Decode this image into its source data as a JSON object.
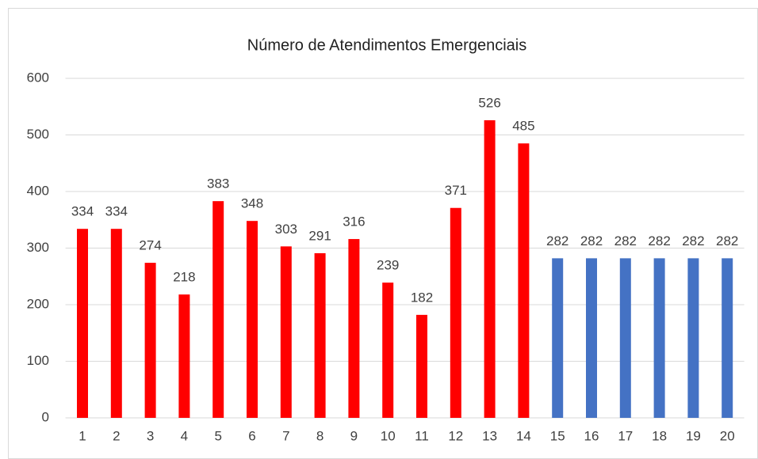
{
  "chart_data": {
    "type": "bar",
    "title": "Número de Atendimentos Emergenciais",
    "categories": [
      "1",
      "2",
      "3",
      "4",
      "5",
      "6",
      "7",
      "8",
      "9",
      "10",
      "11",
      "12",
      "13",
      "14",
      "15",
      "16",
      "17",
      "18",
      "19",
      "20"
    ],
    "values": [
      334,
      334,
      274,
      218,
      383,
      348,
      303,
      291,
      316,
      239,
      182,
      371,
      526,
      485,
      282,
      282,
      282,
      282,
      282,
      282
    ],
    "colors": [
      "#ff0000",
      "#ff0000",
      "#ff0000",
      "#ff0000",
      "#ff0000",
      "#ff0000",
      "#ff0000",
      "#ff0000",
      "#ff0000",
      "#ff0000",
      "#ff0000",
      "#ff0000",
      "#ff0000",
      "#ff0000",
      "#4472c4",
      "#4472c4",
      "#4472c4",
      "#4472c4",
      "#4472c4",
      "#4472c4"
    ],
    "ylim": [
      0,
      600
    ],
    "yticks": [
      0,
      100,
      200,
      300,
      400,
      500,
      600
    ],
    "grid": true
  }
}
